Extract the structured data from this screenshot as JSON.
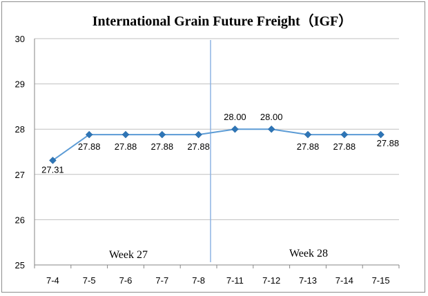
{
  "chart_data": {
    "type": "line",
    "title": "International Grain Future Freight（IGF）",
    "categories": [
      "7-4",
      "7-5",
      "7-6",
      "7-7",
      "7-8",
      "7-11",
      "7-12",
      "7-13",
      "7-14",
      "7-15"
    ],
    "series": [
      {
        "values": [
          27.31,
          27.88,
          27.88,
          27.88,
          27.88,
          28.0,
          28.0,
          27.88,
          27.88,
          27.88
        ],
        "data_labels": [
          "27.31",
          "27.88",
          "27.88",
          "27.88",
          "27.88",
          "28.00",
          "28.00",
          "27.88",
          "27.88",
          "27.88"
        ],
        "color": "#5b9bd5",
        "marker": "diamond",
        "marker_color": "#2e75b6"
      }
    ],
    "ylim": [
      25,
      30
    ],
    "yticks": [
      "25",
      "26",
      "27",
      "28",
      "29",
      "30"
    ],
    "grid": true,
    "gridline_color": "#bfbfbf",
    "week_labels": [
      "Week 27",
      "Week 28"
    ],
    "week_divider_after_category": "7-8",
    "divider_color": "#8eb4e3"
  }
}
